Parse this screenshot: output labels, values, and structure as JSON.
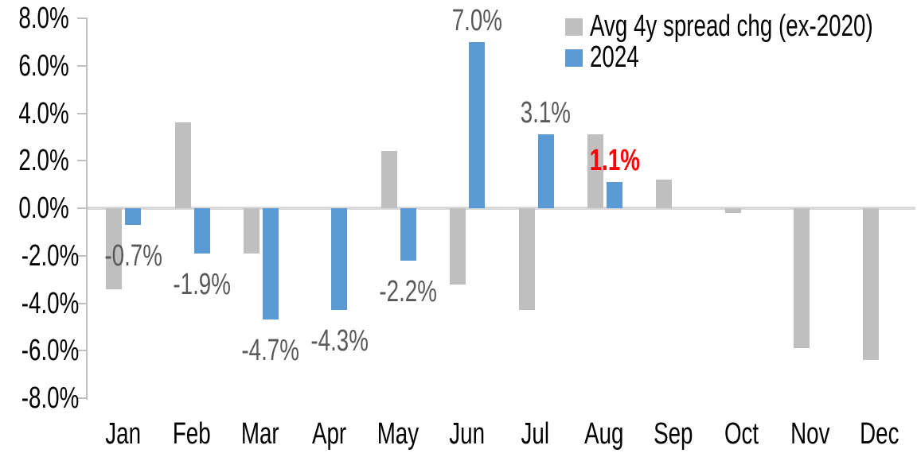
{
  "chart_data": {
    "type": "bar",
    "title": "",
    "xlabel": "",
    "ylabel": "",
    "categories": [
      "Jan",
      "Feb",
      "Mar",
      "Apr",
      "May",
      "Jun",
      "Jul",
      "Aug",
      "Sep",
      "Oct",
      "Nov",
      "Dec"
    ],
    "series": [
      {
        "name": "Avg 4y spread chg (ex-2020)",
        "color": "#BFBFBF",
        "values": [
          -3.4,
          3.6,
          -1.9,
          0.0,
          2.4,
          -3.2,
          -4.3,
          3.1,
          1.2,
          -0.2,
          -5.9,
          -6.4
        ]
      },
      {
        "name": "2024",
        "color": "#5B9BD5",
        "values": [
          -0.7,
          -1.9,
          -4.7,
          -4.3,
          -2.2,
          7.0,
          3.1,
          1.1,
          null,
          null,
          null,
          null
        ]
      }
    ],
    "data_labels": [
      {
        "cat_index": 0,
        "text": "-0.7%",
        "value": -0.7,
        "color": "#595959",
        "bold": false
      },
      {
        "cat_index": 1,
        "text": "-1.9%",
        "value": -1.9,
        "color": "#595959",
        "bold": false
      },
      {
        "cat_index": 2,
        "text": "-4.7%",
        "value": -4.7,
        "color": "#595959",
        "bold": false
      },
      {
        "cat_index": 3,
        "text": "-4.3%",
        "value": -4.3,
        "color": "#595959",
        "bold": false
      },
      {
        "cat_index": 4,
        "text": "-2.2%",
        "value": -2.2,
        "color": "#595959",
        "bold": false
      },
      {
        "cat_index": 5,
        "text": "7.0%",
        "value": 7.0,
        "color": "#595959",
        "bold": false
      },
      {
        "cat_index": 6,
        "text": "3.1%",
        "value": 3.1,
        "color": "#595959",
        "bold": false
      },
      {
        "cat_index": 7,
        "text": "1.1%",
        "value": 1.1,
        "color": "#FF0000",
        "bold": true
      }
    ],
    "y_axis": {
      "tick_labels": [
        "8.0%",
        "6.0%",
        "4.0%",
        "2.0%",
        "0.0%",
        "-2.0%",
        "-4.0%",
        "-6.0%",
        "-8.0%"
      ],
      "tick_values": [
        8,
        6,
        4,
        2,
        0,
        -2,
        -4,
        -6,
        -8
      ],
      "min": -8,
      "max": 8
    },
    "grid": false,
    "legend": {
      "position": "top-right",
      "entries": [
        {
          "label": "Avg 4y spread chg (ex-2020)",
          "color": "#BFBFBF"
        },
        {
          "label": "2024",
          "color": "#5B9BD5"
        }
      ]
    },
    "colors": {
      "axis_line": "#BFBFBF",
      "zero_line": "#D9D9D9",
      "tick_label": "#000000",
      "data_label_default": "#595959",
      "data_label_emphasis": "#FF0000"
    }
  }
}
